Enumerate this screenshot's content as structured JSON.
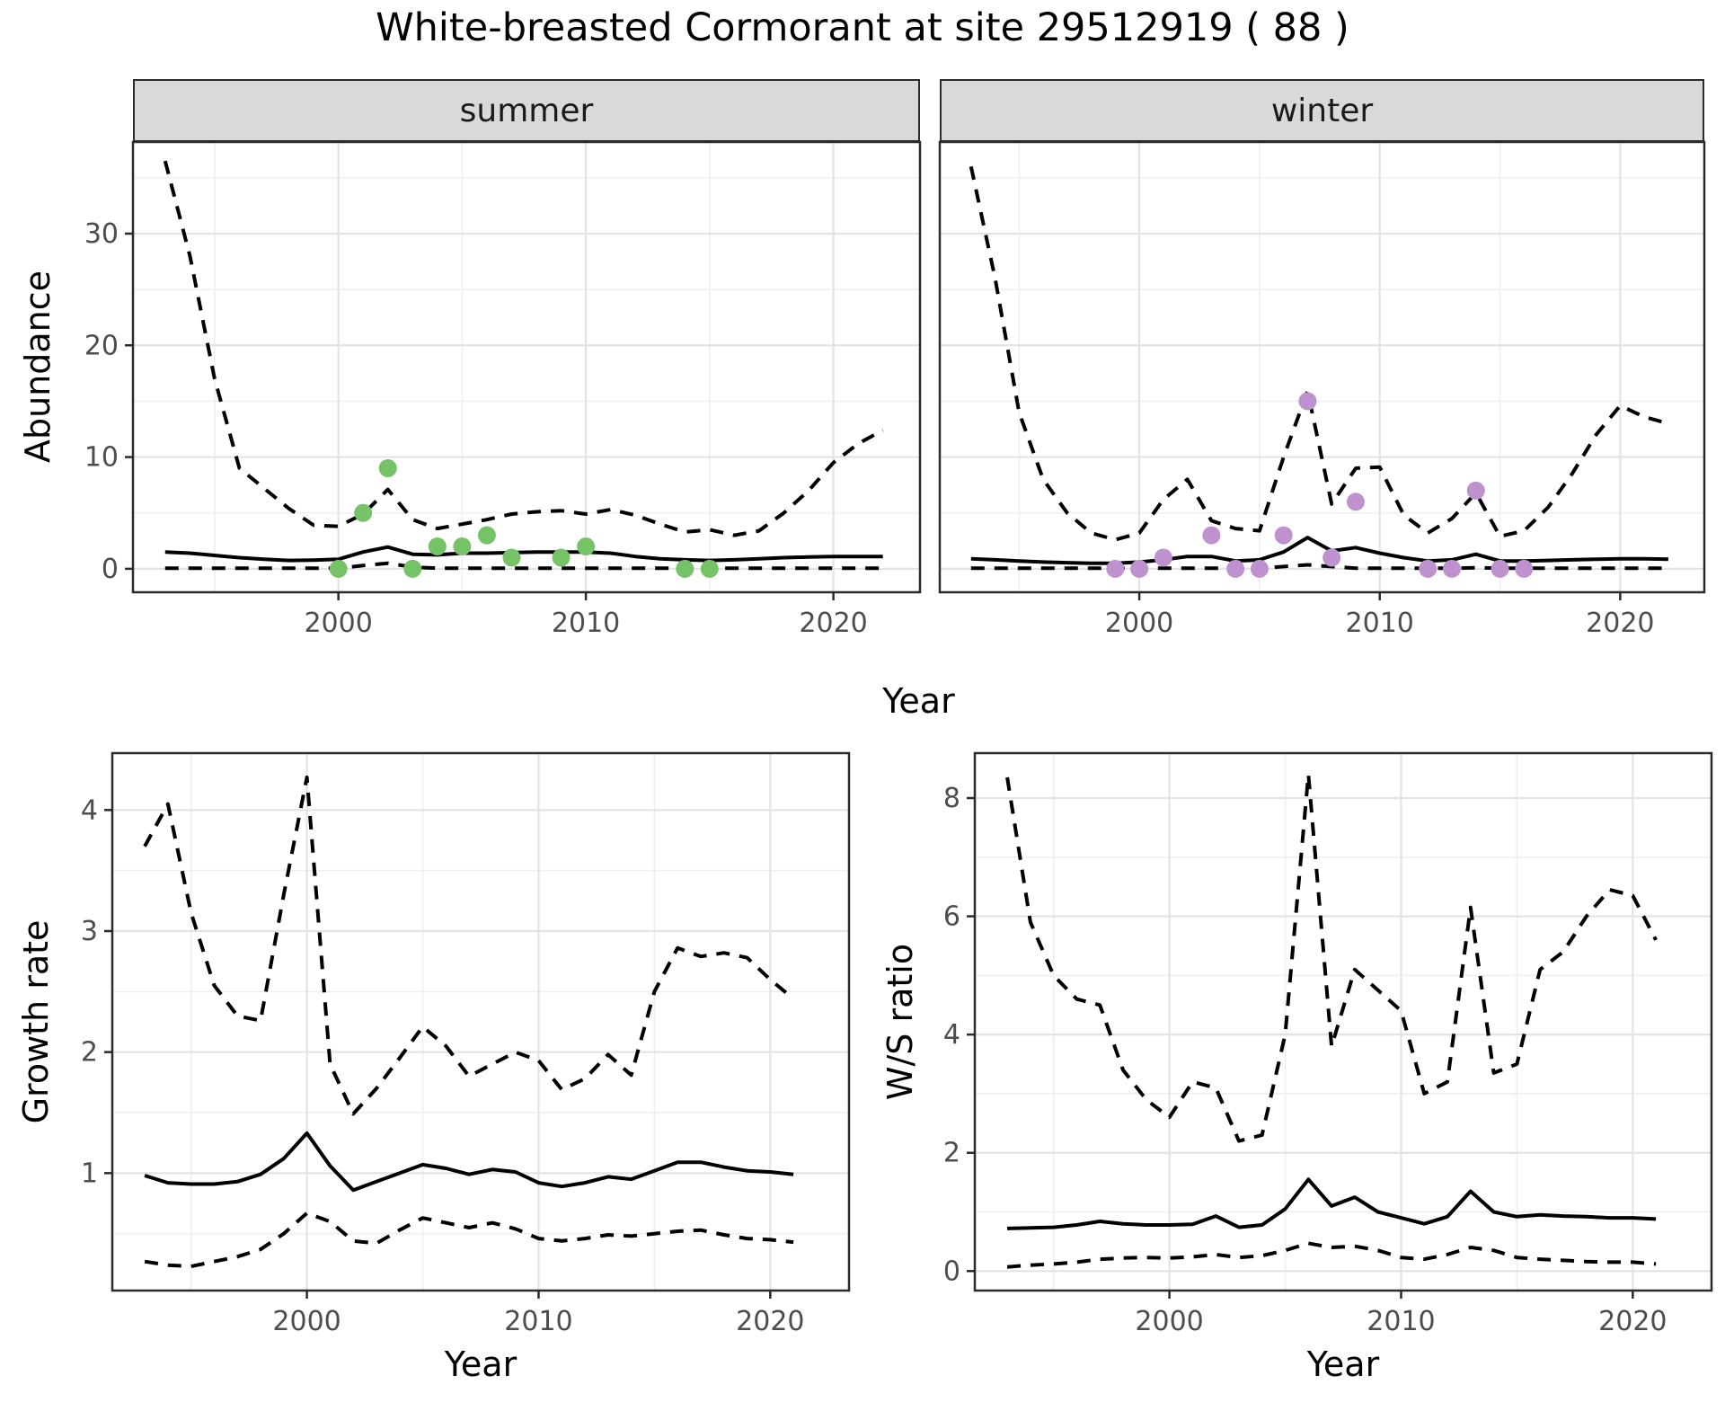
{
  "title": "White-breasted Cormorant at site 29512919 ( 88 )",
  "top_row": {
    "x_label": "Year",
    "y_label": "Abundance"
  },
  "colors": {
    "summer_point": "#76c266",
    "winter_point": "#bd92ce",
    "line": "#000000",
    "grid_major": "#e3e3e3",
    "grid_minor": "#f0f0f0",
    "panel_border": "#2b2b2b",
    "strip_fill": "#d9d9d9",
    "tick_text": "#4d4d4d"
  },
  "chart_data": [
    {
      "id": "abundance-summer",
      "type": "line",
      "facet_label": "summer",
      "xlabel": "Year",
      "ylabel": "Abundance",
      "xlim": [
        1991.7,
        2023.5
      ],
      "ylim": [
        -2.1,
        38.2
      ],
      "xticks": [
        2000,
        2010,
        2020
      ],
      "xminor": [
        1995,
        2005,
        2015
      ],
      "yticks": [
        0,
        10,
        20,
        30
      ],
      "yminor": [
        5,
        15,
        25,
        35
      ],
      "x": [
        1993,
        1994,
        1995,
        1996,
        1997,
        1998,
        1999,
        2000,
        2001,
        2002,
        2003,
        2004,
        2005,
        2006,
        2007,
        2008,
        2009,
        2010,
        2011,
        2012,
        2013,
        2014,
        2015,
        2016,
        2017,
        2018,
        2019,
        2020,
        2021,
        2022
      ],
      "series": [
        {
          "name": "upper-ci",
          "style": "dashed",
          "y": [
            36.5,
            28,
            17,
            9,
            7.2,
            5.4,
            3.9,
            3.8,
            4.9,
            7.1,
            4.4,
            3.6,
            4.0,
            4.4,
            4.9,
            5.1,
            5.2,
            4.9,
            5.3,
            4.8,
            4.0,
            3.3,
            3.5,
            3.0,
            3.4,
            5.0,
            7.0,
            9.5,
            11.2,
            12.4
          ]
        },
        {
          "name": "lower-ci",
          "style": "dashed",
          "y": [
            0.05,
            0.05,
            0.05,
            0.05,
            0.05,
            0.05,
            0.05,
            0.05,
            0.3,
            0.5,
            0.15,
            0.05,
            0.05,
            0.05,
            0.05,
            0.05,
            0.05,
            0.05,
            0.05,
            0.05,
            0.05,
            0.05,
            0.05,
            0.05,
            0.05,
            0.05,
            0.05,
            0.05,
            0.05,
            0.05
          ]
        },
        {
          "name": "estimate",
          "style": "solid",
          "y": [
            1.5,
            1.4,
            1.2,
            1.0,
            0.85,
            0.75,
            0.78,
            0.85,
            1.5,
            1.95,
            1.3,
            1.25,
            1.4,
            1.4,
            1.45,
            1.5,
            1.5,
            1.5,
            1.4,
            1.1,
            0.9,
            0.8,
            0.75,
            0.8,
            0.9,
            1.0,
            1.05,
            1.1,
            1.1,
            1.1
          ]
        },
        {
          "name": "observed-counts",
          "style": "points",
          "color": "#76c266",
          "x": [
            2000,
            2001,
            2002,
            2003,
            2004,
            2005,
            2006,
            2007,
            2009,
            2010,
            2014,
            2015
          ],
          "y": [
            0,
            5,
            9,
            0,
            2,
            2,
            3,
            1,
            1,
            2,
            0,
            0
          ]
        }
      ]
    },
    {
      "id": "abundance-winter",
      "type": "line",
      "facet_label": "winter",
      "xlabel": "Year",
      "ylabel": "Abundance",
      "xlim": [
        1991.7,
        2023.5
      ],
      "ylim": [
        -2.1,
        38.2
      ],
      "xticks": [
        2000,
        2010,
        2020
      ],
      "xminor": [
        1995,
        2005,
        2015
      ],
      "yticks": [
        0,
        10,
        20,
        30
      ],
      "yminor": [
        5,
        15,
        25,
        35
      ],
      "x": [
        1993,
        1994,
        1995,
        1996,
        1997,
        1998,
        1999,
        2000,
        2001,
        2002,
        2003,
        2004,
        2005,
        2006,
        2007,
        2008,
        2009,
        2010,
        2011,
        2012,
        2013,
        2014,
        2015,
        2016,
        2017,
        2018,
        2019,
        2020,
        2021,
        2022
      ],
      "series": [
        {
          "name": "upper-ci",
          "style": "dashed",
          "y": [
            36,
            26,
            14,
            8,
            5,
            3.2,
            2.6,
            3.2,
            6.2,
            8.0,
            4.3,
            3.6,
            3.4,
            10,
            15.9,
            5.8,
            9.0,
            9.1,
            4.8,
            3.2,
            4.5,
            6.8,
            2.9,
            3.4,
            5.5,
            8.5,
            12,
            14.6,
            13.6,
            13.0
          ]
        },
        {
          "name": "lower-ci",
          "style": "dashed",
          "y": [
            0.05,
            0.05,
            0.05,
            0.05,
            0.05,
            0.05,
            0.05,
            0.05,
            0.05,
            0.05,
            0.05,
            0.05,
            0.05,
            0.2,
            0.35,
            0.2,
            0.05,
            0.05,
            0.05,
            0.05,
            0.05,
            0.1,
            0.05,
            0.05,
            0.05,
            0.05,
            0.05,
            0.05,
            0.05,
            0.05
          ]
        },
        {
          "name": "estimate",
          "style": "solid",
          "y": [
            0.9,
            0.8,
            0.7,
            0.6,
            0.55,
            0.5,
            0.5,
            0.6,
            0.8,
            1.1,
            1.1,
            0.7,
            0.8,
            1.5,
            2.8,
            1.6,
            1.9,
            1.4,
            1.0,
            0.7,
            0.8,
            1.3,
            0.7,
            0.7,
            0.75,
            0.8,
            0.85,
            0.9,
            0.9,
            0.85
          ]
        },
        {
          "name": "observed-counts",
          "style": "points",
          "color": "#bd92ce",
          "x": [
            1999,
            2000,
            2001,
            2003,
            2004,
            2005,
            2006,
            2007,
            2008,
            2009,
            2012,
            2013,
            2014,
            2015,
            2016
          ],
          "y": [
            0,
            0,
            1,
            3,
            0,
            0,
            3,
            15,
            1,
            6,
            0,
            0,
            7,
            0,
            0
          ]
        }
      ]
    },
    {
      "id": "growth-rate",
      "type": "line",
      "facet_label": "",
      "xlabel": "Year",
      "ylabel": "Growth rate",
      "xlim": [
        1991.6,
        2023.4
      ],
      "ylim": [
        0.03,
        4.47
      ],
      "xticks": [
        2000,
        2010,
        2020
      ],
      "xminor": [
        1995,
        2005,
        2015
      ],
      "yticks": [
        1,
        2,
        3,
        4
      ],
      "yminor": [
        0.5,
        1.5,
        2.5,
        3.5
      ],
      "x": [
        1993,
        1994,
        1995,
        1996,
        1997,
        1998,
        1999,
        2000,
        2001,
        2002,
        2003,
        2004,
        2005,
        2006,
        2007,
        2008,
        2009,
        2010,
        2011,
        2012,
        2013,
        2014,
        2015,
        2016,
        2017,
        2018,
        2019,
        2020,
        2021
      ],
      "series": [
        {
          "name": "upper-ci",
          "style": "dashed",
          "y": [
            3.7,
            4.05,
            3.15,
            2.55,
            2.3,
            2.26,
            3.3,
            4.27,
            1.9,
            1.49,
            1.7,
            1.95,
            2.21,
            2.05,
            1.8,
            1.9,
            2.0,
            1.93,
            1.69,
            1.78,
            1.98,
            1.81,
            2.5,
            2.86,
            2.79,
            2.82,
            2.78,
            2.6,
            2.44
          ]
        },
        {
          "name": "lower-ci",
          "style": "dashed",
          "y": [
            0.27,
            0.24,
            0.23,
            0.27,
            0.31,
            0.37,
            0.5,
            0.67,
            0.6,
            0.44,
            0.42,
            0.53,
            0.63,
            0.59,
            0.55,
            0.59,
            0.54,
            0.46,
            0.44,
            0.46,
            0.49,
            0.48,
            0.5,
            0.52,
            0.53,
            0.49,
            0.46,
            0.45,
            0.43
          ]
        },
        {
          "name": "estimate",
          "style": "solid",
          "y": [
            0.98,
            0.92,
            0.91,
            0.91,
            0.93,
            0.99,
            1.12,
            1.33,
            1.06,
            0.86,
            0.93,
            1.0,
            1.07,
            1.04,
            0.99,
            1.03,
            1.01,
            0.92,
            0.89,
            0.92,
            0.97,
            0.95,
            1.02,
            1.09,
            1.09,
            1.05,
            1.02,
            1.01,
            0.99
          ]
        }
      ]
    },
    {
      "id": "ws-ratio",
      "type": "line",
      "facet_label": "",
      "xlabel": "Year",
      "ylabel": "W/S ratio",
      "xlim": [
        1991.6,
        2023.4
      ],
      "ylim": [
        -0.33,
        8.76
      ],
      "xticks": [
        2000,
        2010,
        2020
      ],
      "xminor": [
        1995,
        2005,
        2015
      ],
      "yticks": [
        0,
        2,
        4,
        6,
        8
      ],
      "yminor": [
        1,
        3,
        5,
        7
      ],
      "x": [
        1993,
        1994,
        1995,
        1996,
        1997,
        1998,
        1999,
        2000,
        2001,
        2002,
        2003,
        2004,
        2005,
        2006,
        2007,
        2008,
        2009,
        2010,
        2011,
        2012,
        2013,
        2014,
        2015,
        2016,
        2017,
        2018,
        2019,
        2020,
        2021
      ],
      "series": [
        {
          "name": "upper-ci",
          "style": "dashed",
          "y": [
            8.35,
            5.9,
            5.0,
            4.6,
            4.5,
            3.4,
            2.9,
            2.6,
            3.2,
            3.1,
            2.2,
            2.3,
            4.0,
            8.4,
            3.8,
            5.1,
            4.75,
            4.4,
            3.0,
            3.2,
            6.15,
            3.35,
            3.5,
            5.1,
            5.4,
            6.0,
            6.45,
            6.35,
            5.6
          ]
        },
        {
          "name": "lower-ci",
          "style": "dashed",
          "y": [
            0.07,
            0.1,
            0.12,
            0.15,
            0.2,
            0.22,
            0.23,
            0.22,
            0.24,
            0.28,
            0.23,
            0.26,
            0.35,
            0.47,
            0.4,
            0.42,
            0.35,
            0.23,
            0.2,
            0.28,
            0.4,
            0.35,
            0.23,
            0.2,
            0.18,
            0.16,
            0.15,
            0.15,
            0.12
          ]
        },
        {
          "name": "estimate",
          "style": "solid",
          "y": [
            0.72,
            0.73,
            0.74,
            0.78,
            0.84,
            0.8,
            0.78,
            0.78,
            0.79,
            0.93,
            0.74,
            0.78,
            1.05,
            1.55,
            1.1,
            1.25,
            1.0,
            0.9,
            0.8,
            0.92,
            1.35,
            1.0,
            0.92,
            0.95,
            0.93,
            0.92,
            0.9,
            0.9,
            0.88
          ]
        }
      ]
    }
  ]
}
